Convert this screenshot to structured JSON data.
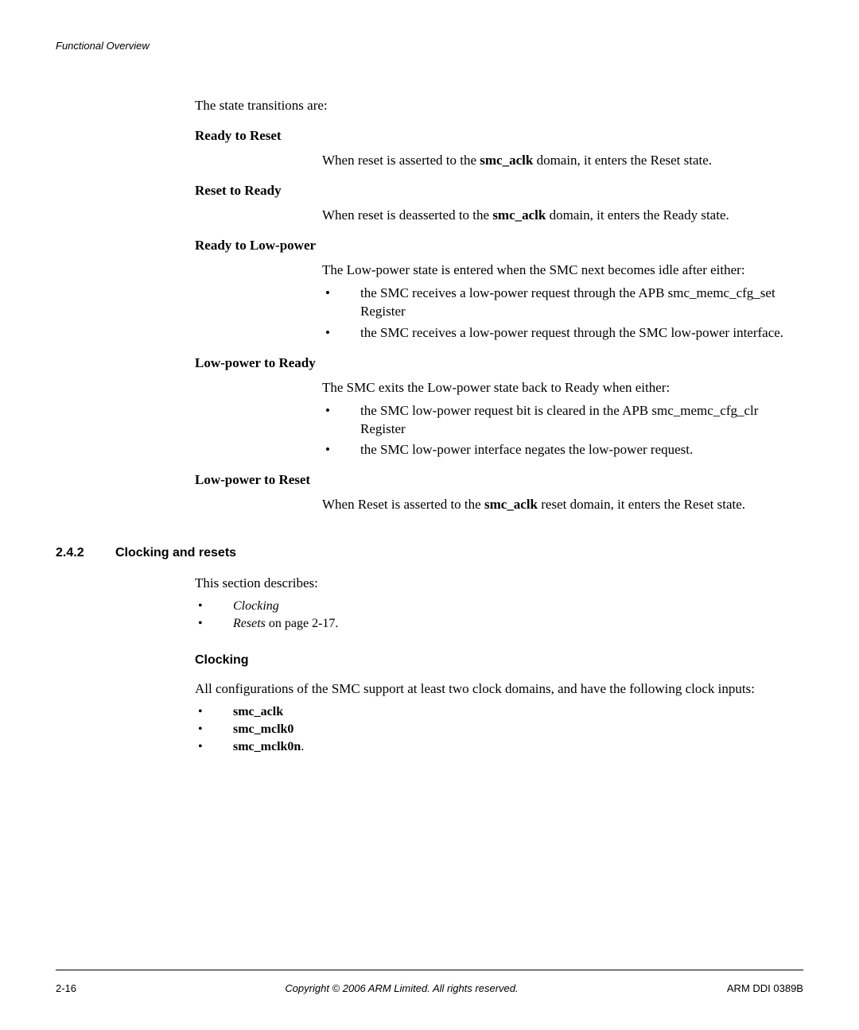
{
  "header": {
    "title": "Functional Overview"
  },
  "intro": "The state transitions are:",
  "defs": [
    {
      "term": "Ready to Reset",
      "body": [
        {
          "type": "para",
          "segments": [
            {
              "t": "When reset is asserted to the "
            },
            {
              "t": "smc_aclk",
              "bold": true
            },
            {
              "t": " domain, it enters the Reset state."
            }
          ]
        }
      ]
    },
    {
      "term": "Reset to Ready",
      "body": [
        {
          "type": "para",
          "segments": [
            {
              "t": "When reset is deasserted to the "
            },
            {
              "t": "smc_aclk",
              "bold": true
            },
            {
              "t": " domain, it enters the Ready state."
            }
          ]
        }
      ]
    },
    {
      "term": "Ready to Low-power",
      "body": [
        {
          "type": "para",
          "segments": [
            {
              "t": "The Low-power state is entered when the SMC next becomes idle after either:"
            }
          ]
        },
        {
          "type": "bullets",
          "items": [
            "the SMC receives a low-power request through the APB smc_memc_cfg_set Register",
            "the SMC receives a low-power request through the SMC low-power interface."
          ]
        }
      ]
    },
    {
      "term": "Low-power to Ready",
      "body": [
        {
          "type": "para",
          "segments": [
            {
              "t": "The SMC exits the Low-power state back to Ready when either:"
            }
          ]
        },
        {
          "type": "bullets",
          "items": [
            "the SMC low-power request bit is cleared in the APB smc_memc_cfg_clr Register",
            "the SMC low-power interface negates the low-power request."
          ]
        }
      ]
    },
    {
      "term": "Low-power to Reset",
      "body": [
        {
          "type": "para",
          "segments": [
            {
              "t": "When Reset is asserted to the "
            },
            {
              "t": "smc_aclk",
              "bold": true
            },
            {
              "t": " reset domain, it enters the Reset state."
            }
          ]
        }
      ]
    }
  ],
  "section": {
    "num": "2.4.2",
    "title": "Clocking and resets",
    "intro": "This section describes:",
    "bullets": [
      {
        "segments": [
          {
            "t": "Clocking",
            "italic": true
          }
        ]
      },
      {
        "segments": [
          {
            "t": "Resets",
            "italic": true
          },
          {
            "t": " on page 2-17."
          }
        ]
      }
    ],
    "sub": {
      "heading": "Clocking",
      "para": "All configurations of the SMC support at least two clock domains, and have the following clock inputs:",
      "items": [
        {
          "segments": [
            {
              "t": "smc_aclk",
              "bold": true
            }
          ]
        },
        {
          "segments": [
            {
              "t": "smc_mclk0",
              "bold": true
            }
          ]
        },
        {
          "segments": [
            {
              "t": "smc_mclk0n",
              "bold": true
            },
            {
              "t": "."
            }
          ]
        }
      ]
    }
  },
  "footer": {
    "left": "2-16",
    "center": "Copyright © 2006 ARM Limited. All rights reserved.",
    "right": "ARM DDI 0389B"
  }
}
